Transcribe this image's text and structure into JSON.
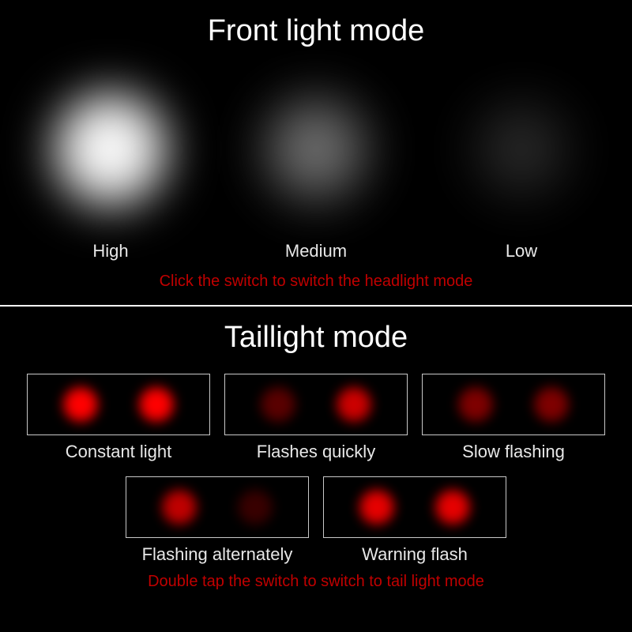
{
  "front": {
    "title": "Front light mode",
    "instruction": "Click the switch to switch the headlight mode",
    "instruction_color": "#c00000",
    "modes": [
      {
        "label": "High",
        "core_color": "#ffffff",
        "halo_color": "rgba(255,255,255,0.95)",
        "opacity": 1.0,
        "size": 170,
        "blur": 28
      },
      {
        "label": "Medium",
        "core_color": "#b8b8b8",
        "halo_color": "rgba(160,160,160,0.75)",
        "opacity": 0.72,
        "size": 160,
        "blur": 30
      },
      {
        "label": "Low",
        "core_color": "#808080",
        "halo_color": "rgba(110,110,110,0.55)",
        "opacity": 0.45,
        "size": 150,
        "blur": 32
      }
    ]
  },
  "tail": {
    "title": "Taillight mode",
    "instruction": "Double tap the switch to switch to tail light mode",
    "instruction_color": "#c00000",
    "box_border_color": "#c8c8c8",
    "modes": [
      {
        "label": "Constant light",
        "led1_opacity": 1.0,
        "led2_opacity": 1.0,
        "led_color": "#ff0000"
      },
      {
        "label": "Flashes quickly",
        "led1_opacity": 0.35,
        "led2_opacity": 0.8,
        "led_color": "#ff0000"
      },
      {
        "label": "Slow flashing",
        "led1_opacity": 0.55,
        "led2_opacity": 0.55,
        "led_color": "#e60000"
      },
      {
        "label": "Flashing alternately",
        "led1_opacity": 0.75,
        "led2_opacity": 0.22,
        "led_color": "#ff0000"
      },
      {
        "label": "Warning flash",
        "led1_opacity": 0.9,
        "led2_opacity": 0.9,
        "led_color": "#ff0000"
      }
    ]
  },
  "layout": {
    "background": "#000000",
    "text_color": "#ffffff",
    "label_color": "#e8e8e8",
    "title_fontsize": 38,
    "label_fontsize": 22,
    "instruction_fontsize": 20
  }
}
